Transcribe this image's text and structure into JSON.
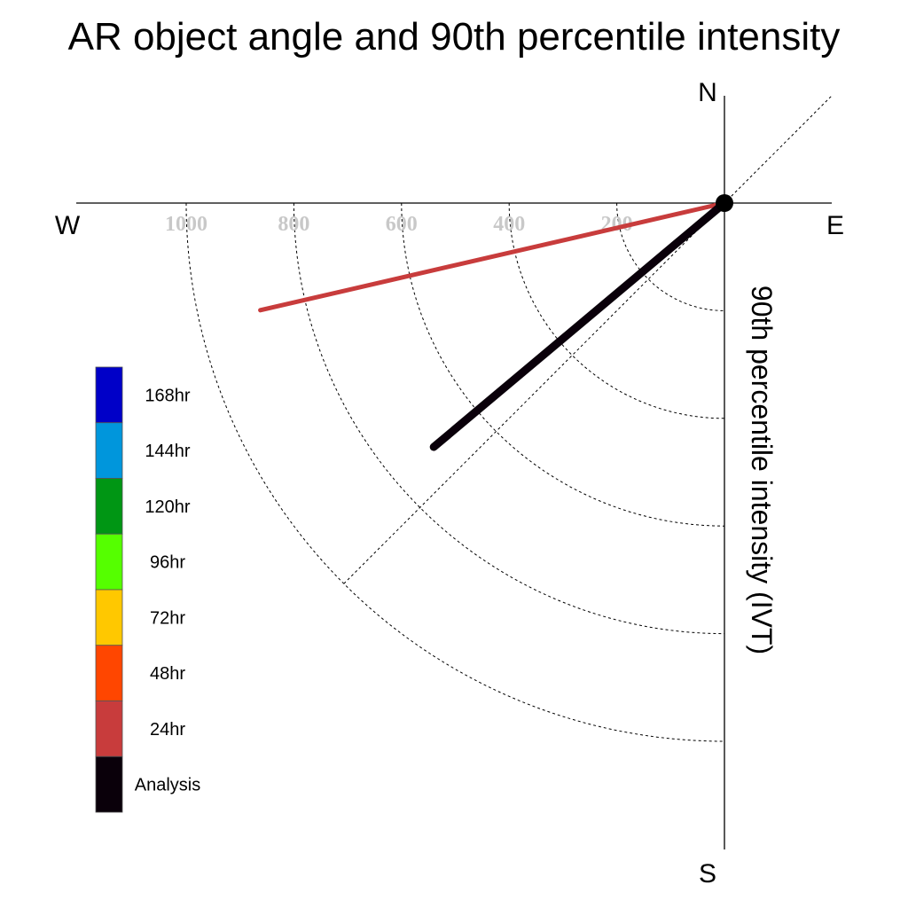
{
  "chart_data": {
    "type": "polar-vector",
    "title": "AR object angle and 90th percentile intensity",
    "ylabel": "90th percentile intensity (IVT)",
    "compass": {
      "north": "N",
      "south": "S",
      "east": "E",
      "west": "W"
    },
    "radial_ticks": [
      "200",
      "400",
      "600",
      "800",
      "1000"
    ],
    "radial_values": [
      200,
      400,
      600,
      800,
      1000
    ],
    "rlim": [
      0,
      1000
    ],
    "grid": true,
    "legend_position": "left",
    "legend": [
      {
        "label": "168hr",
        "color": "#0000c8"
      },
      {
        "label": "144hr",
        "color": "#0096dc"
      },
      {
        "label": "120hr",
        "color": "#009614"
      },
      {
        "label": "96hr",
        "color": "#55ff00"
      },
      {
        "label": "72hr",
        "color": "#ffc800"
      },
      {
        "label": "48hr",
        "color": "#ff4600"
      },
      {
        "label": "24hr",
        "color": "#c83c3c"
      },
      {
        "label": "Analysis",
        "color": "#0a000a"
      }
    ],
    "series": [
      {
        "name": "24hr",
        "color": "#c83c3c",
        "angle_deg_below_west": 13,
        "intensity": 885
      },
      {
        "name": "Analysis",
        "color": "#0a000a",
        "angle_deg_below_west": 40,
        "intensity": 705
      }
    ]
  }
}
